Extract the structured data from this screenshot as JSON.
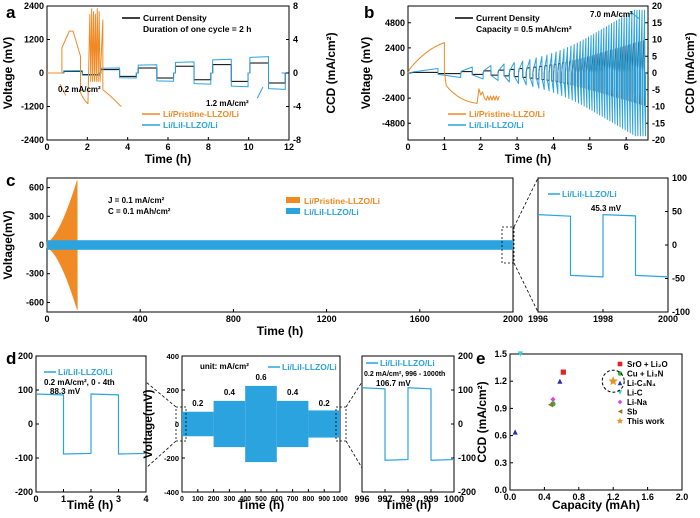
{
  "colors": {
    "orange": "#F08A24",
    "blue": "#2BA3DE",
    "black": "#000000"
  },
  "panels": {
    "a": "a",
    "b": "b",
    "c": "c",
    "d": "d",
    "e": "e"
  },
  "chart_data": [
    {
      "id": "a",
      "type": "line",
      "xlabel": "Time (h)",
      "ylabel": "Voltage (mV)",
      "y2label": "CCD (mA/cm²)",
      "xlim": [
        0,
        13
      ],
      "ylim": [
        -2400,
        2400
      ],
      "y2lim": [
        -8,
        8
      ],
      "xticks": [
        "0",
        "2",
        "4",
        "6",
        "8",
        "10",
        "12"
      ],
      "yticks": [
        "-2400",
        "-1200",
        "0",
        "1200",
        "2400"
      ],
      "y2ticks": [
        "-8",
        "-4",
        "0",
        "4",
        "8"
      ],
      "legend_top": [
        "Current Density",
        "Duration of one cycle = 2 h"
      ],
      "legend_bottom": [
        "Li/Pristine-LLZO/Li",
        "Li/LiI-LLZO/Li"
      ],
      "annotations": [
        "0.2 mA/cm²",
        "1.2 mA/cm²"
      ],
      "series": [
        {
          "name": "Li/LiI-LLZO/Li",
          "color": "blue",
          "current_density_steps": [
            0.2,
            0.4,
            0.6,
            0.8,
            1.0,
            1.2
          ],
          "overpotential_mV": [
            80,
            170,
            280,
            380,
            470,
            560
          ]
        },
        {
          "name": "Li/Pristine-LLZO/Li",
          "color": "orange",
          "short_circuit_time_h": 4.0
        }
      ]
    },
    {
      "id": "b",
      "type": "line",
      "xlabel": "Time (h)",
      "ylabel": "Voltage (mV)",
      "y2label": "CCD (mA/cm²)",
      "xlim": [
        0,
        6.6
      ],
      "ylim": [
        -6400,
        6400
      ],
      "y2lim": [
        -20,
        20
      ],
      "xticks": [
        "0",
        "1",
        "2",
        "3",
        "4",
        "5",
        "6"
      ],
      "yticks": [
        "-4800",
        "-2400",
        "0",
        "2400",
        "4800"
      ],
      "y2ticks": [
        "-20",
        "-15",
        "-10",
        "-5",
        "0",
        "5",
        "10",
        "15",
        "20"
      ],
      "legend_top": [
        "Current Density",
        "Capacity = 0.5 mAh/cm²"
      ],
      "legend_bottom": [
        "Li/Pristine-LLZO/Li",
        "Li/LiI-LLZO/Li"
      ],
      "annotations": [
        "7.0 mA/cm²"
      ]
    },
    {
      "id": "c",
      "type": "line",
      "xlabel": "Time (h)",
      "ylabel": "Voltage(mV)",
      "xlim": [
        0,
        2000
      ],
      "ylim": [
        -700,
        700
      ],
      "xticks": [
        "0",
        "400",
        "800",
        "1200",
        "1600",
        "2000"
      ],
      "yticks": [
        "-600",
        "-300",
        "0",
        "300",
        "600"
      ],
      "annotations": [
        "J = 0.1 mA/cm²",
        "C = 0.1 mAh/cm²"
      ],
      "legend": [
        "Li/Pristine-LLZO/Li",
        "Li/LiI-LLZO/Li"
      ],
      "inset": {
        "legend": "Li/LiI-LLZO/Li",
        "annotation": "45.3 mV",
        "xlim": [
          1996,
          2000
        ],
        "ylim": [
          -100,
          100
        ],
        "xticks": [
          "1996",
          "1998",
          "2000"
        ],
        "yticks": [
          "-100",
          "-50",
          "0",
          "50",
          "100"
        ],
        "overpotential_mV": 45.3
      }
    },
    {
      "id": "d",
      "type": "line",
      "xlabel": "Time (h)",
      "ylabel": "Voltage(mV)",
      "left": {
        "legend": "Li/LiI-LLZO/Li",
        "annotations": [
          "0.2 mA/cm², 0 - 4th",
          "88.3 mV"
        ],
        "xlim": [
          0,
          4
        ],
        "ylim": [
          -200,
          200
        ],
        "xticks": [
          "0",
          "1",
          "2",
          "3",
          "4"
        ],
        "yticks": [
          "-200",
          "-100",
          "0",
          "100",
          "200"
        ],
        "overpotential_mV": 88.3
      },
      "middle": {
        "legend": "Li/LiI-LLZO/Li",
        "unit": "unit: mA/cm²",
        "xlim": [
          0,
          1000
        ],
        "ylim": [
          -200,
          200
        ],
        "xticks": [
          "0",
          "100",
          "200",
          "300",
          "400",
          "500",
          "600",
          "700",
          "800",
          "900",
          "1000"
        ],
        "yticks": [
          "-400",
          "-200",
          "0",
          "200",
          "400"
        ],
        "steps": [
          "0.2",
          "0.4",
          "0.6",
          "0.4",
          "0.2"
        ]
      },
      "right": {
        "legend": "Li/LiI-LLZO/Li",
        "annotations": [
          "0.2 mA/cm², 996 - 1000th",
          "106.7 mV"
        ],
        "xlim": [
          996,
          1000
        ],
        "ylim": [
          -200,
          200
        ],
        "xticks": [
          "996",
          "997",
          "998",
          "999",
          "1000"
        ],
        "yticks": [
          "-200",
          "-100",
          "0",
          "100",
          "200"
        ],
        "overpotential_mV": 106.7
      }
    },
    {
      "id": "e",
      "type": "scatter",
      "xlabel": "Capacity (mAh)",
      "ylabel": "CCD (mA/cm²)",
      "xlim": [
        0,
        2.0
      ],
      "ylim": [
        0,
        1.5
      ],
      "xticks": [
        "0.0",
        "0.4",
        "0.8",
        "1.2",
        "1.6",
        "2.0"
      ],
      "yticks": [
        "0.0",
        "0.3",
        "0.6",
        "0.9",
        "1.2",
        "1.5"
      ],
      "points": [
        {
          "label": "SrO + Li₂O",
          "x": 0.62,
          "y": 1.3,
          "color": "#E32222",
          "marker": "square"
        },
        {
          "label": "Cu + Li₃N",
          "x": 0.5,
          "y": 0.95,
          "color": "#35B044",
          "marker": "circle"
        },
        {
          "label": "Li-C₃N₄",
          "x": 0.06,
          "y": 0.64,
          "color": "#2530B0",
          "marker": "triangle"
        },
        {
          "label": "Li-C",
          "x": 0.12,
          "y": 1.5,
          "color": "#36D2E0",
          "marker": "triangle-down"
        },
        {
          "label": "Li-Na",
          "x": 0.5,
          "y": 1.0,
          "color": "#E040E0",
          "marker": "diamond"
        },
        {
          "label": "Sb",
          "x": 0.47,
          "y": 0.94,
          "color": "#8A7A20",
          "marker": "triangle-left"
        },
        {
          "label": "This work",
          "x": 1.2,
          "y": 1.2,
          "color": "#E8922A",
          "marker": "star"
        },
        {
          "label": "Li-C₃N₄ (2)",
          "x": 0.58,
          "y": 1.2,
          "color": "#2530B0",
          "marker": "triangle",
          "hidden_label": true
        }
      ],
      "highlight": "This work"
    }
  ]
}
